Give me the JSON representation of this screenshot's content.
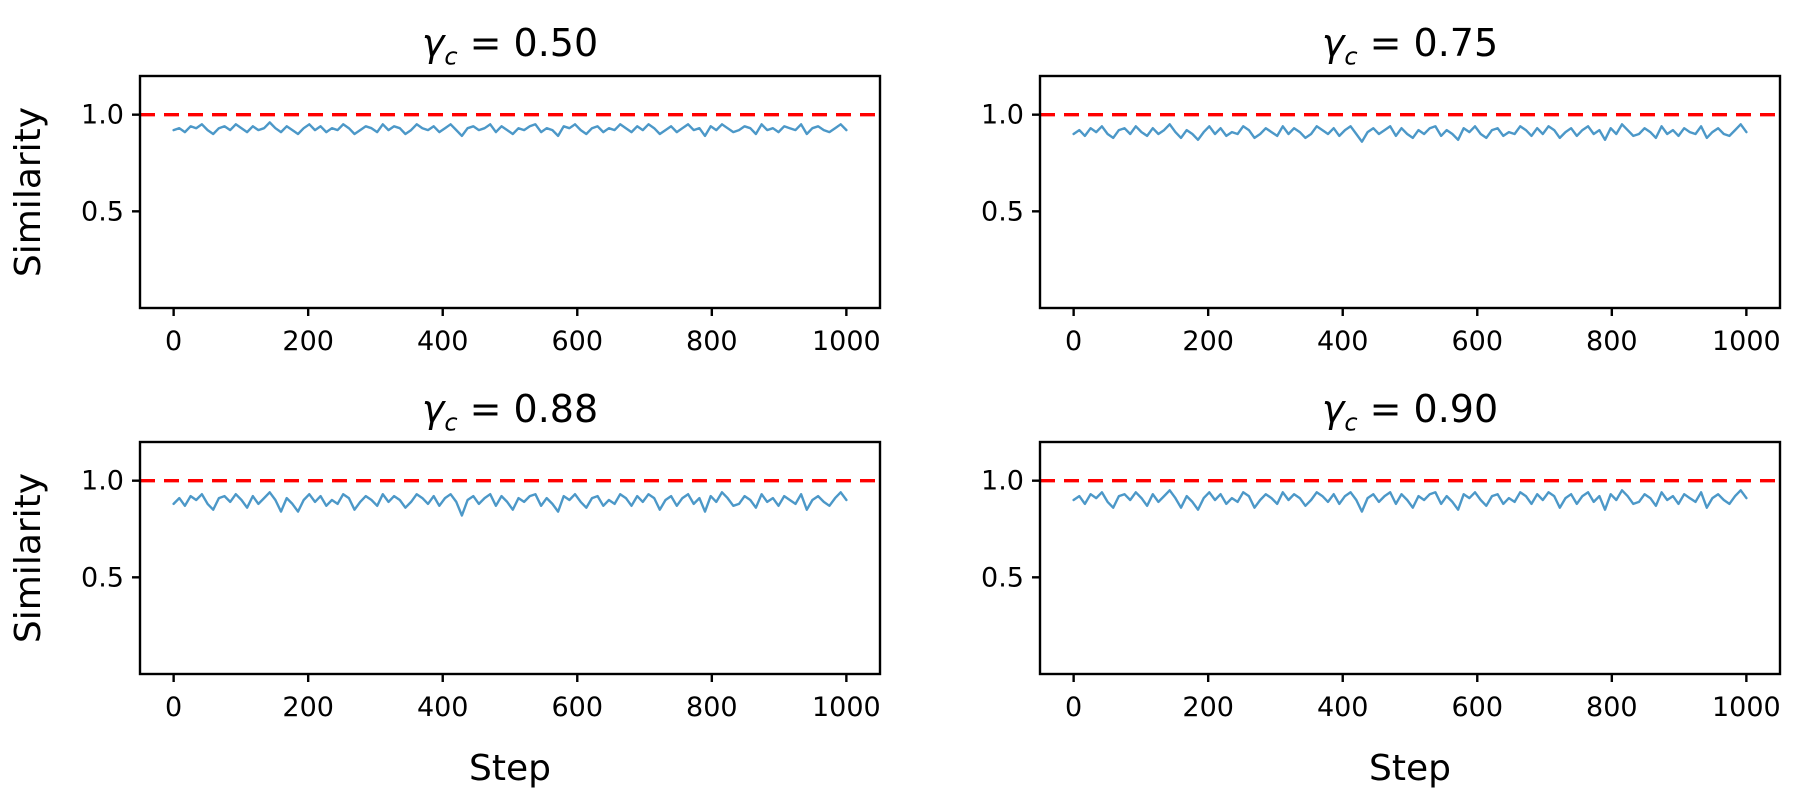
{
  "figure": {
    "background": "#ffffff",
    "layout": "2x2-subplot-grid"
  },
  "chart_data": [
    {
      "type": "line",
      "title": {
        "symbol": "γ",
        "subscript": "c",
        "rest": " = 0.50"
      },
      "xlabel": "",
      "ylabel": "Similarity",
      "x_range": [
        0,
        1000
      ],
      "xlim": [
        -50,
        1050
      ],
      "ylim": [
        0,
        1.2
      ],
      "xticks": [
        0,
        200,
        400,
        600,
        800,
        1000
      ],
      "yticks": [
        {
          "value": 1.0,
          "label": "1.0"
        },
        {
          "value": 0.5,
          "label": "0.5"
        }
      ],
      "grid": false,
      "reference_line": {
        "y": 1.0,
        "color": "#ff0000",
        "style": "dashed"
      },
      "series": {
        "name": "similarity",
        "color": "#4c98c8",
        "values_x100": [
          92,
          93,
          91,
          94,
          93,
          95,
          92,
          90,
          93,
          94,
          92,
          95,
          93,
          91,
          94,
          92,
          93,
          96,
          93,
          91,
          94,
          92,
          90,
          93,
          95,
          92,
          94,
          91,
          93,
          92,
          95,
          93,
          90,
          92,
          94,
          93,
          91,
          95,
          92,
          94,
          93,
          90,
          92,
          95,
          93,
          92,
          94,
          91,
          93,
          95,
          92,
          89,
          93,
          94,
          92,
          93,
          95,
          91,
          94,
          92,
          90,
          93,
          92,
          94,
          95,
          91,
          93,
          92,
          89,
          94,
          93,
          95,
          92,
          90,
          93,
          94,
          91,
          93,
          92,
          95,
          93,
          91,
          94,
          92,
          95,
          93,
          90,
          92,
          94,
          91,
          93,
          95,
          92,
          93,
          89,
          94,
          92,
          95,
          93,
          91,
          92,
          94,
          93,
          90,
          95,
          92,
          93,
          91,
          94,
          93,
          92,
          95,
          90,
          93,
          94,
          92,
          91,
          93,
          95,
          92
        ]
      }
    },
    {
      "type": "line",
      "title": {
        "symbol": "γ",
        "subscript": "c",
        "rest": " = 0.75"
      },
      "xlabel": "",
      "ylabel": "",
      "x_range": [
        0,
        1000
      ],
      "xlim": [
        -50,
        1050
      ],
      "ylim": [
        0,
        1.2
      ],
      "xticks": [
        0,
        200,
        400,
        600,
        800,
        1000
      ],
      "yticks": [
        {
          "value": 1.0,
          "label": "1.0"
        },
        {
          "value": 0.5,
          "label": "0.5"
        }
      ],
      "grid": false,
      "reference_line": {
        "y": 1.0,
        "color": "#ff0000",
        "style": "dashed"
      },
      "series": {
        "name": "similarity",
        "color": "#4c98c8",
        "values_x100": [
          90,
          92,
          89,
          93,
          91,
          94,
          90,
          88,
          92,
          93,
          90,
          94,
          91,
          89,
          93,
          90,
          92,
          95,
          91,
          88,
          92,
          90,
          87,
          91,
          94,
          90,
          93,
          89,
          91,
          90,
          94,
          92,
          88,
          90,
          93,
          91,
          89,
          94,
          90,
          93,
          91,
          88,
          90,
          94,
          92,
          90,
          93,
          89,
          92,
          94,
          90,
          86,
          91,
          93,
          90,
          92,
          94,
          89,
          93,
          90,
          88,
          92,
          90,
          93,
          94,
          89,
          92,
          90,
          87,
          93,
          91,
          94,
          90,
          88,
          92,
          93,
          89,
          91,
          90,
          94,
          92,
          89,
          93,
          90,
          94,
          92,
          88,
          91,
          93,
          89,
          92,
          94,
          90,
          92,
          87,
          93,
          90,
          95,
          92,
          89,
          90,
          93,
          91,
          88,
          94,
          90,
          92,
          89,
          93,
          91,
          90,
          94,
          88,
          91,
          93,
          90,
          89,
          92,
          95,
          91
        ]
      }
    },
    {
      "type": "line",
      "title": {
        "symbol": "γ",
        "subscript": "c",
        "rest": " = 0.88"
      },
      "xlabel": "Step",
      "ylabel": "Similarity",
      "x_range": [
        0,
        1000
      ],
      "xlim": [
        -50,
        1050
      ],
      "ylim": [
        0,
        1.2
      ],
      "xticks": [
        0,
        200,
        400,
        600,
        800,
        1000
      ],
      "yticks": [
        {
          "value": 1.0,
          "label": "1.0"
        },
        {
          "value": 0.5,
          "label": "0.5"
        }
      ],
      "grid": false,
      "reference_line": {
        "y": 1.0,
        "color": "#ff0000",
        "style": "dashed"
      },
      "series": {
        "name": "similarity",
        "color": "#4c98c8",
        "values_x100": [
          88,
          91,
          87,
          92,
          90,
          93,
          88,
          85,
          91,
          92,
          89,
          93,
          90,
          86,
          92,
          88,
          91,
          94,
          90,
          84,
          91,
          88,
          84,
          90,
          93,
          89,
          92,
          87,
          90,
          88,
          93,
          91,
          85,
          89,
          92,
          90,
          87,
          93,
          89,
          92,
          90,
          86,
          89,
          93,
          91,
          88,
          92,
          87,
          91,
          93,
          89,
          82,
          90,
          92,
          88,
          91,
          93,
          87,
          92,
          89,
          85,
          91,
          89,
          92,
          93,
          87,
          91,
          88,
          84,
          92,
          90,
          93,
          89,
          86,
          91,
          92,
          87,
          90,
          88,
          93,
          91,
          87,
          92,
          89,
          93,
          91,
          85,
          90,
          92,
          87,
          91,
          93,
          88,
          91,
          84,
          92,
          89,
          94,
          91,
          87,
          88,
          92,
          90,
          86,
          93,
          89,
          91,
          87,
          92,
          90,
          88,
          93,
          85,
          90,
          92,
          89,
          87,
          91,
          94,
          90
        ]
      }
    },
    {
      "type": "line",
      "title": {
        "symbol": "γ",
        "subscript": "c",
        "rest": " = 0.90"
      },
      "xlabel": "Step",
      "ylabel": "",
      "x_range": [
        0,
        1000
      ],
      "xlim": [
        -50,
        1050
      ],
      "ylim": [
        0,
        1.2
      ],
      "xticks": [
        0,
        200,
        400,
        600,
        800,
        1000
      ],
      "yticks": [
        {
          "value": 1.0,
          "label": "1.0"
        },
        {
          "value": 0.5,
          "label": "0.5"
        }
      ],
      "grid": false,
      "reference_line": {
        "y": 1.0,
        "color": "#ff0000",
        "style": "dashed"
      },
      "series": {
        "name": "similarity",
        "color": "#4c98c8",
        "values_x100": [
          90,
          92,
          88,
          93,
          91,
          94,
          89,
          86,
          92,
          93,
          90,
          94,
          91,
          87,
          93,
          89,
          92,
          95,
          91,
          86,
          92,
          89,
          85,
          91,
          94,
          90,
          93,
          88,
          91,
          89,
          94,
          92,
          86,
          90,
          93,
          91,
          88,
          94,
          90,
          93,
          91,
          87,
          90,
          94,
          92,
          89,
          93,
          88,
          92,
          94,
          90,
          84,
          91,
          93,
          89,
          92,
          94,
          88,
          93,
          90,
          86,
          92,
          90,
          93,
          94,
          88,
          92,
          89,
          85,
          93,
          91,
          94,
          90,
          87,
          92,
          93,
          88,
          91,
          89,
          94,
          92,
          88,
          93,
          90,
          94,
          92,
          86,
          91,
          93,
          88,
          92,
          94,
          89,
          92,
          85,
          93,
          90,
          95,
          92,
          88,
          89,
          93,
          91,
          87,
          94,
          90,
          92,
          88,
          93,
          91,
          89,
          94,
          86,
          91,
          93,
          90,
          88,
          92,
          95,
          91
        ]
      }
    }
  ],
  "styles": {
    "axis_color": "#000000",
    "line_color": "#4c98c8",
    "reference_color": "#ff0000"
  }
}
